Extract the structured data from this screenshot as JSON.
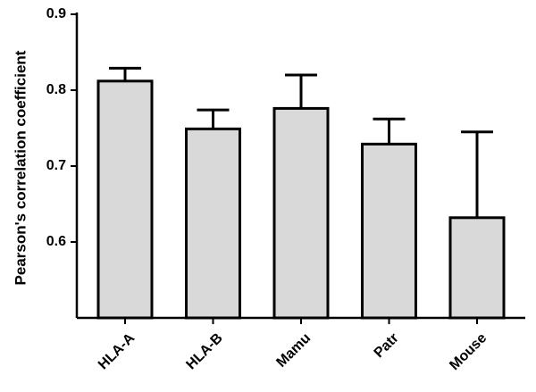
{
  "chart_data": {
    "type": "bar",
    "title": "",
    "xlabel": "",
    "ylabel": "Pearson's correlation coefficient",
    "categories": [
      "HLA-A",
      "HLA-B",
      "Mamu",
      "Patr",
      "Mouse"
    ],
    "values": [
      0.812,
      0.749,
      0.776,
      0.729,
      0.632
    ],
    "error_upper": [
      0.829,
      0.774,
      0.82,
      0.762,
      0.745
    ],
    "ylim": [
      0.5,
      0.9
    ],
    "yticks": [
      0.6,
      0.7,
      0.8,
      0.9
    ],
    "ytick_labels": [
      "0.6",
      "0.7",
      "0.8",
      "0.9"
    ],
    "grid": false,
    "legend": "none",
    "bar_color": "#d9d9d9",
    "edge_color": "#000000"
  }
}
